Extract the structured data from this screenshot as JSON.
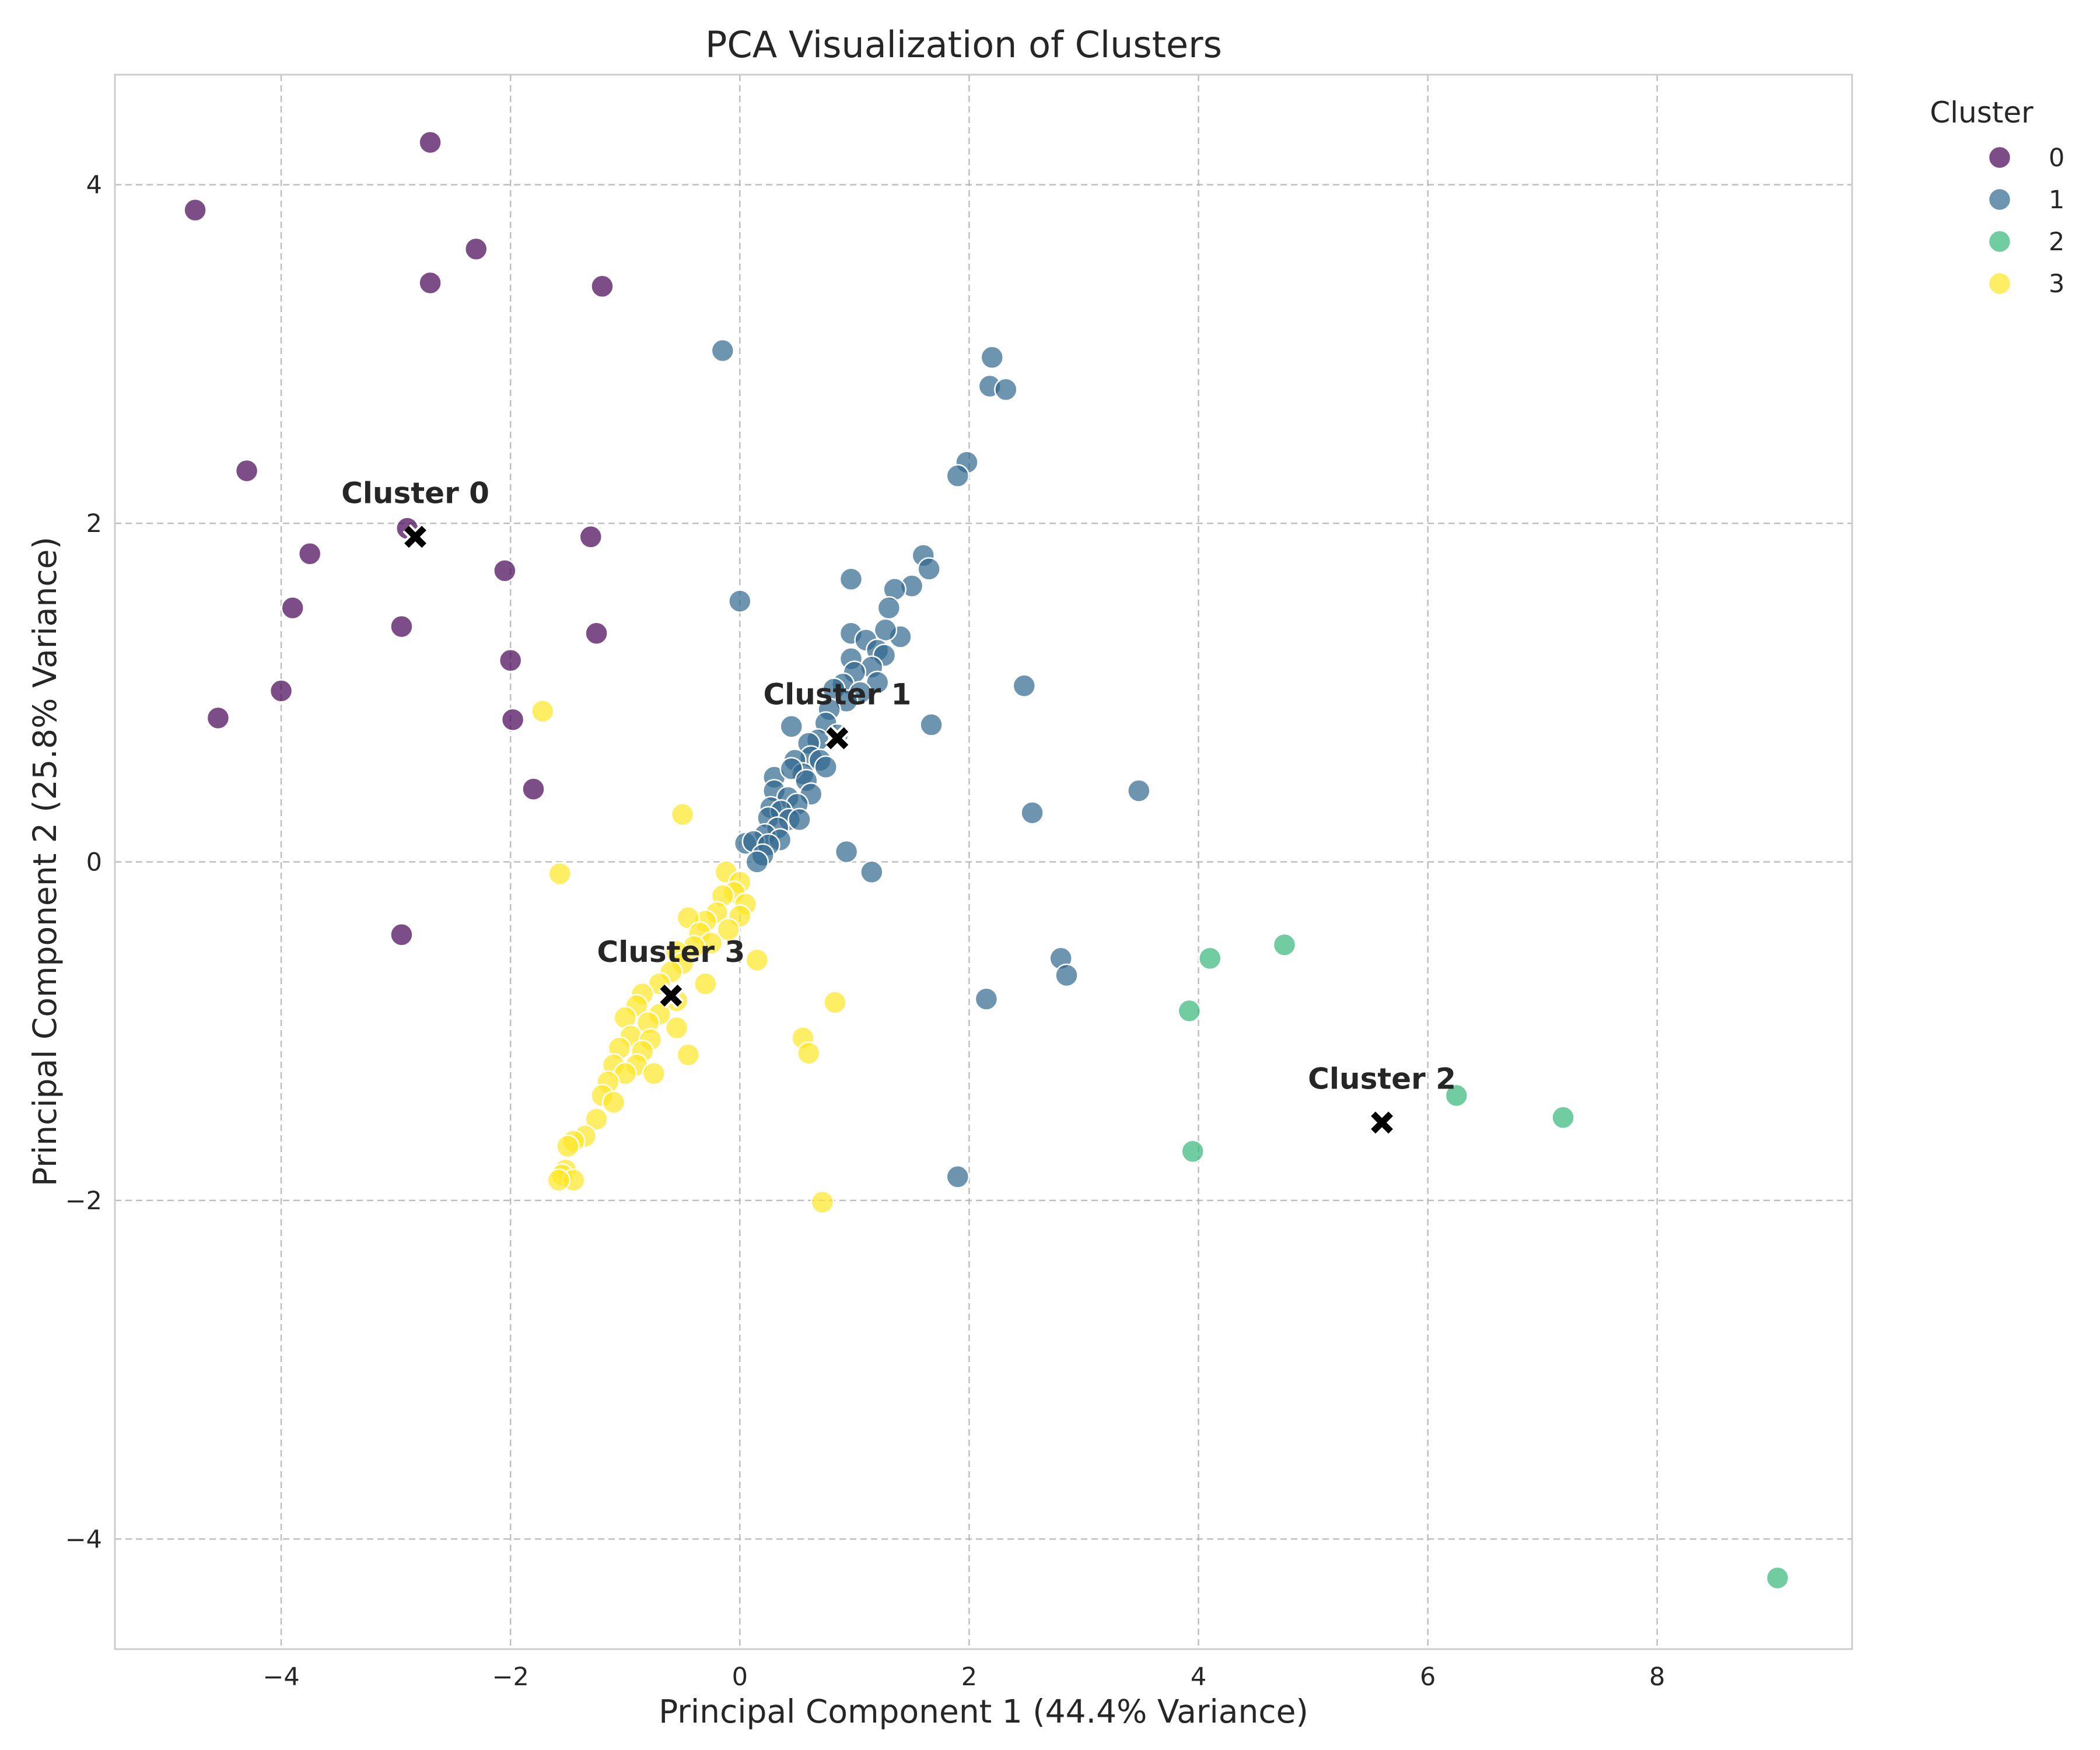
{
  "chart_data": {
    "type": "scatter",
    "title": "PCA Visualization of Clusters",
    "xlabel": "Principal Component 1 (44.4% Variance)",
    "ylabel": "Principal Component 2 (25.8% Variance)",
    "xlim": [
      -5.45,
      9.7
    ],
    "ylim": [
      -4.65,
      4.65
    ],
    "xticks": [
      -4,
      -2,
      0,
      2,
      4,
      6,
      8
    ],
    "yticks": [
      -4,
      -2,
      0,
      2,
      4
    ],
    "grid": true,
    "legend": {
      "title": "Cluster",
      "placement": "outside top-right"
    },
    "series": [
      {
        "name": "0",
        "color": "#440154",
        "points": [
          [
            -4.75,
            3.85
          ],
          [
            -2.7,
            4.25
          ],
          [
            -2.3,
            3.62
          ],
          [
            -2.7,
            3.42
          ],
          [
            -1.2,
            3.4
          ],
          [
            -4.3,
            2.31
          ],
          [
            -3.75,
            1.82
          ],
          [
            -2.9,
            1.97
          ],
          [
            -1.3,
            1.92
          ],
          [
            -2.05,
            1.72
          ],
          [
            -3.9,
            1.5
          ],
          [
            -2.95,
            1.39
          ],
          [
            -1.25,
            1.35
          ],
          [
            -2.0,
            1.19
          ],
          [
            -4.0,
            1.01
          ],
          [
            -4.55,
            0.85
          ],
          [
            -1.98,
            0.84
          ],
          [
            -1.8,
            0.43
          ],
          [
            -2.95,
            -0.43
          ]
        ]
      },
      {
        "name": "1",
        "color": "#31688e",
        "points": [
          [
            -0.15,
            3.02
          ],
          [
            2.2,
            2.98
          ],
          [
            2.18,
            2.81
          ],
          [
            2.32,
            2.79
          ],
          [
            1.98,
            2.36
          ],
          [
            1.9,
            2.28
          ],
          [
            1.6,
            1.81
          ],
          [
            1.65,
            1.73
          ],
          [
            0.0,
            1.54
          ],
          [
            0.97,
            1.67
          ],
          [
            1.5,
            1.63
          ],
          [
            1.35,
            1.61
          ],
          [
            1.3,
            1.5
          ],
          [
            0.97,
            1.35
          ],
          [
            1.4,
            1.33
          ],
          [
            1.27,
            1.37
          ],
          [
            1.1,
            1.31
          ],
          [
            1.2,
            1.25
          ],
          [
            1.26,
            1.22
          ],
          [
            0.97,
            1.2
          ],
          [
            1.15,
            1.15
          ],
          [
            1.0,
            1.12
          ],
          [
            0.9,
            1.05
          ],
          [
            1.2,
            1.06
          ],
          [
            2.48,
            1.04
          ],
          [
            0.82,
            1.02
          ],
          [
            1.05,
            1.0
          ],
          [
            0.93,
            0.95
          ],
          [
            0.78,
            0.9
          ],
          [
            0.75,
            0.82
          ],
          [
            0.45,
            0.8
          ],
          [
            1.67,
            0.81
          ],
          [
            0.85,
            0.75
          ],
          [
            0.68,
            0.72
          ],
          [
            0.6,
            0.7
          ],
          [
            0.62,
            0.62
          ],
          [
            0.7,
            0.6
          ],
          [
            0.48,
            0.6
          ],
          [
            0.55,
            0.52
          ],
          [
            0.3,
            0.5
          ],
          [
            0.45,
            0.55
          ],
          [
            0.75,
            0.56
          ],
          [
            0.58,
            0.48
          ],
          [
            0.3,
            0.42
          ],
          [
            0.42,
            0.38
          ],
          [
            0.62,
            0.4
          ],
          [
            3.48,
            0.42
          ],
          [
            0.27,
            0.32
          ],
          [
            0.5,
            0.34
          ],
          [
            0.36,
            0.3
          ],
          [
            2.55,
            0.29
          ],
          [
            0.25,
            0.26
          ],
          [
            0.43,
            0.25
          ],
          [
            0.52,
            0.25
          ],
          [
            0.33,
            0.2
          ],
          [
            0.22,
            0.16
          ],
          [
            0.35,
            0.13
          ],
          [
            0.05,
            0.11
          ],
          [
            0.12,
            0.12
          ],
          [
            0.25,
            0.1
          ],
          [
            0.2,
            0.04
          ],
          [
            0.15,
            0.0
          ],
          [
            0.93,
            0.06
          ],
          [
            1.15,
            -0.06
          ],
          [
            2.8,
            -0.57
          ],
          [
            2.85,
            -0.67
          ],
          [
            2.15,
            -0.81
          ],
          [
            1.9,
            -1.86
          ]
        ]
      },
      {
        "name": "2",
        "color": "#35b779",
        "points": [
          [
            4.75,
            -0.49
          ],
          [
            4.1,
            -0.57
          ],
          [
            3.92,
            -0.88
          ],
          [
            6.25,
            -1.38
          ],
          [
            7.18,
            -1.51
          ],
          [
            3.95,
            -1.71
          ],
          [
            9.05,
            -4.23
          ]
        ]
      },
      {
        "name": "3",
        "color": "#fde725",
        "points": [
          [
            -1.72,
            0.89
          ],
          [
            -0.5,
            0.28
          ],
          [
            -1.57,
            -0.07
          ],
          [
            -0.12,
            -0.06
          ],
          [
            0.0,
            -0.12
          ],
          [
            -0.05,
            -0.18
          ],
          [
            -0.15,
            -0.2
          ],
          [
            0.05,
            -0.25
          ],
          [
            -0.2,
            -0.3
          ],
          [
            0.0,
            -0.32
          ],
          [
            -0.3,
            -0.35
          ],
          [
            -0.45,
            -0.33
          ],
          [
            -0.1,
            -0.4
          ],
          [
            -0.35,
            -0.42
          ],
          [
            -0.25,
            -0.48
          ],
          [
            -0.4,
            -0.5
          ],
          [
            -0.55,
            -0.53
          ],
          [
            0.15,
            -0.58
          ],
          [
            -0.5,
            -0.6
          ],
          [
            -0.6,
            -0.65
          ],
          [
            -0.3,
            -0.72
          ],
          [
            -0.7,
            -0.72
          ],
          [
            -0.85,
            -0.78
          ],
          [
            -0.55,
            -0.82
          ],
          [
            -0.9,
            -0.85
          ],
          [
            0.83,
            -0.83
          ],
          [
            -0.7,
            -0.9
          ],
          [
            -1.0,
            -0.92
          ],
          [
            -0.8,
            -0.95
          ],
          [
            -0.55,
            -0.98
          ],
          [
            -0.95,
            -1.03
          ],
          [
            -0.78,
            -1.05
          ],
          [
            0.55,
            -1.04
          ],
          [
            -1.05,
            -1.1
          ],
          [
            -0.85,
            -1.12
          ],
          [
            0.6,
            -1.13
          ],
          [
            -0.45,
            -1.14
          ],
          [
            -0.9,
            -1.2
          ],
          [
            -1.1,
            -1.2
          ],
          [
            -0.75,
            -1.25
          ],
          [
            -1.0,
            -1.25
          ],
          [
            -1.15,
            -1.3
          ],
          [
            -1.2,
            -1.38
          ],
          [
            -1.1,
            -1.42
          ],
          [
            -1.25,
            -1.52
          ],
          [
            -1.35,
            -1.62
          ],
          [
            -1.45,
            -1.65
          ],
          [
            -1.5,
            -1.68
          ],
          [
            -1.52,
            -1.82
          ],
          [
            -1.55,
            -1.85
          ],
          [
            -1.45,
            -1.88
          ],
          [
            -1.58,
            -1.88
          ],
          [
            0.72,
            -2.01
          ]
        ]
      }
    ],
    "centroids": [
      {
        "label": "Cluster 0",
        "x": -2.83,
        "y": 1.92
      },
      {
        "label": "Cluster 1",
        "x": 0.85,
        "y": 0.73
      },
      {
        "label": "Cluster 2",
        "x": 5.6,
        "y": -1.54
      },
      {
        "label": "Cluster 3",
        "x": -0.6,
        "y": -0.79
      }
    ]
  }
}
